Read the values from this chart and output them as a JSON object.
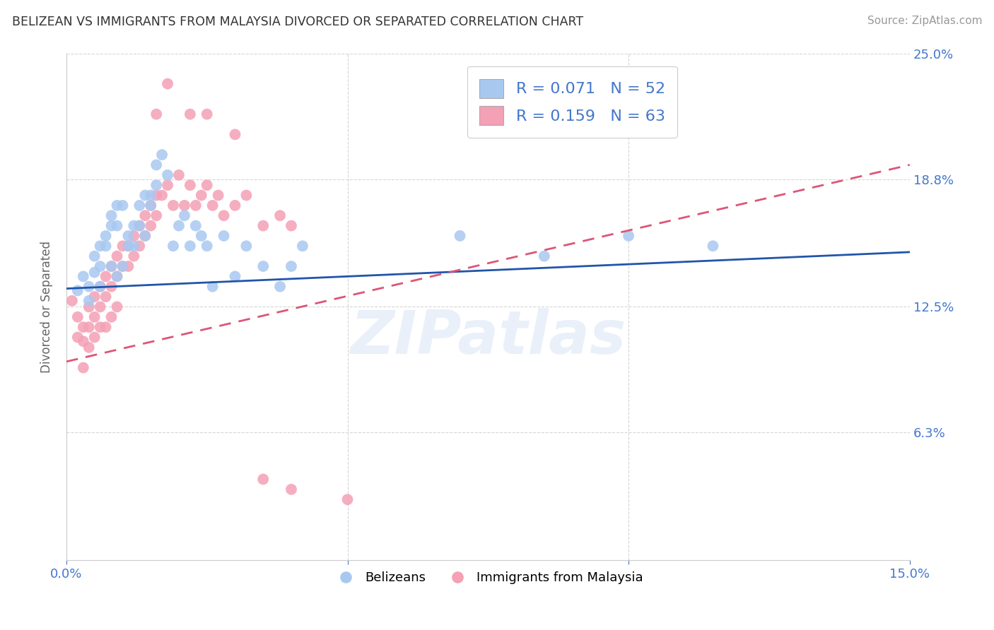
{
  "title": "BELIZEAN VS IMMIGRANTS FROM MALAYSIA DIVORCED OR SEPARATED CORRELATION CHART",
  "source": "Source: ZipAtlas.com",
  "ylabel": "Divorced or Separated",
  "xlim": [
    0.0,
    0.15
  ],
  "ylim": [
    0.0,
    0.25
  ],
  "watermark": "ZIPatlas",
  "blue_R": "0.071",
  "blue_N": "52",
  "pink_R": "0.159",
  "pink_N": "63",
  "blue_color": "#A8C8F0",
  "pink_color": "#F4A0B5",
  "blue_line_color": "#2255AA",
  "pink_line_color": "#DD5577",
  "legend_label_blue": "Belizeans",
  "legend_label_pink": "Immigrants from Malaysia",
  "title_color": "#333333",
  "axis_label_color": "#4477CC",
  "blue_x": [
    0.002,
    0.003,
    0.004,
    0.004,
    0.005,
    0.005,
    0.006,
    0.006,
    0.006,
    0.007,
    0.007,
    0.008,
    0.008,
    0.008,
    0.009,
    0.009,
    0.009,
    0.01,
    0.01,
    0.011,
    0.011,
    0.012,
    0.012,
    0.013,
    0.013,
    0.014,
    0.014,
    0.015,
    0.015,
    0.016,
    0.016,
    0.017,
    0.018,
    0.019,
    0.02,
    0.021,
    0.022,
    0.023,
    0.024,
    0.025,
    0.026,
    0.028,
    0.03,
    0.032,
    0.035,
    0.038,
    0.04,
    0.042,
    0.07,
    0.085,
    0.1,
    0.115
  ],
  "blue_y": [
    0.133,
    0.14,
    0.135,
    0.128,
    0.142,
    0.15,
    0.155,
    0.145,
    0.135,
    0.16,
    0.155,
    0.17,
    0.165,
    0.145,
    0.175,
    0.165,
    0.14,
    0.175,
    0.145,
    0.16,
    0.155,
    0.165,
    0.155,
    0.175,
    0.165,
    0.18,
    0.16,
    0.18,
    0.175,
    0.195,
    0.185,
    0.2,
    0.19,
    0.155,
    0.165,
    0.17,
    0.155,
    0.165,
    0.16,
    0.155,
    0.135,
    0.16,
    0.14,
    0.155,
    0.145,
    0.135,
    0.145,
    0.155,
    0.16,
    0.15,
    0.16,
    0.155
  ],
  "pink_x": [
    0.001,
    0.002,
    0.002,
    0.003,
    0.003,
    0.003,
    0.004,
    0.004,
    0.004,
    0.005,
    0.005,
    0.005,
    0.006,
    0.006,
    0.006,
    0.007,
    0.007,
    0.007,
    0.008,
    0.008,
    0.008,
    0.009,
    0.009,
    0.009,
    0.01,
    0.01,
    0.011,
    0.011,
    0.012,
    0.012,
    0.013,
    0.013,
    0.014,
    0.014,
    0.015,
    0.015,
    0.016,
    0.016,
    0.017,
    0.018,
    0.019,
    0.02,
    0.021,
    0.022,
    0.023,
    0.024,
    0.025,
    0.026,
    0.027,
    0.028,
    0.03,
    0.032,
    0.035,
    0.038,
    0.04,
    0.016,
    0.018,
    0.022,
    0.025,
    0.03,
    0.035,
    0.04,
    0.05
  ],
  "pink_y": [
    0.128,
    0.12,
    0.11,
    0.115,
    0.108,
    0.095,
    0.125,
    0.115,
    0.105,
    0.13,
    0.12,
    0.11,
    0.135,
    0.125,
    0.115,
    0.14,
    0.13,
    0.115,
    0.145,
    0.135,
    0.12,
    0.15,
    0.14,
    0.125,
    0.155,
    0.145,
    0.155,
    0.145,
    0.16,
    0.15,
    0.165,
    0.155,
    0.17,
    0.16,
    0.175,
    0.165,
    0.18,
    0.17,
    0.18,
    0.185,
    0.175,
    0.19,
    0.175,
    0.185,
    0.175,
    0.18,
    0.185,
    0.175,
    0.18,
    0.17,
    0.175,
    0.18,
    0.165,
    0.17,
    0.165,
    0.22,
    0.235,
    0.22,
    0.22,
    0.21,
    0.04,
    0.035,
    0.03
  ]
}
